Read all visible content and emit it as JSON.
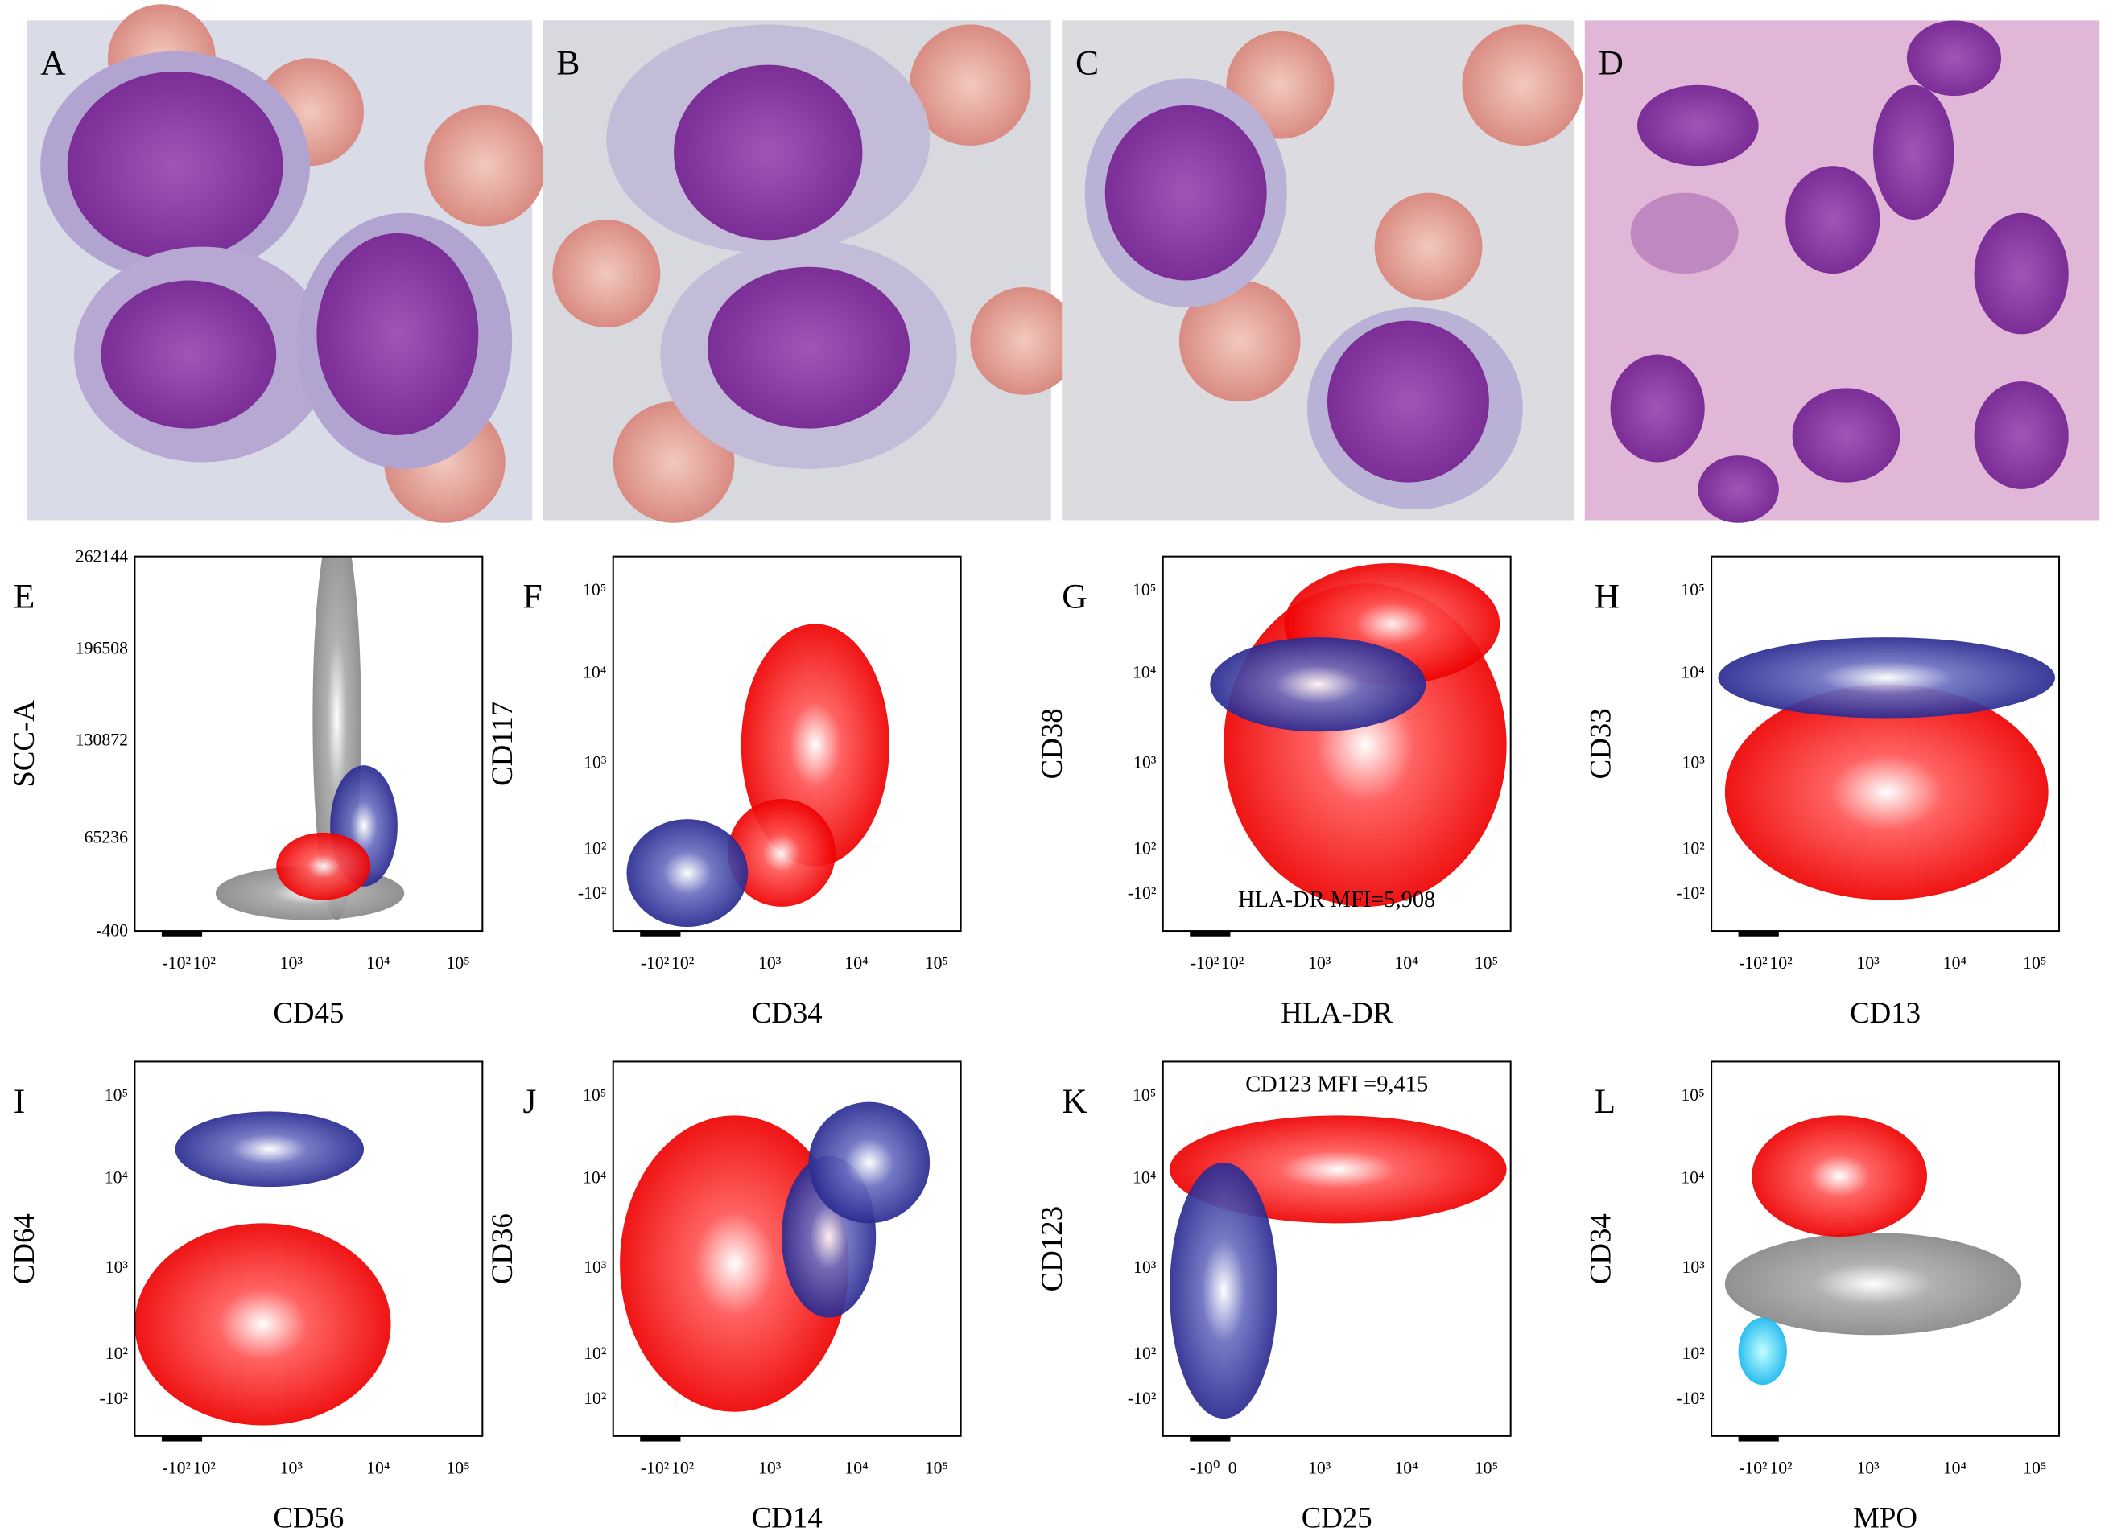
{
  "micrographs": [
    {
      "label": "A"
    },
    {
      "label": "B"
    },
    {
      "label": "C"
    },
    {
      "label": "D"
    }
  ],
  "plots": [
    {
      "label": "E",
      "x_label": "CD45",
      "y_label": "SCC-A",
      "x_ticks": [
        "-10²",
        "10²",
        "10³",
        "10⁴",
        "10⁵"
      ],
      "y_ticks": [
        "262144",
        "196508",
        "130872",
        "65236",
        "-400"
      ]
    },
    {
      "label": "F",
      "x_label": "CD34",
      "y_label": "CD117",
      "x_ticks": [
        "-10²",
        "10²",
        "10³",
        "10⁴",
        "10⁵"
      ],
      "y_ticks": [
        "10⁵",
        "10⁴",
        "10³",
        "10²",
        "-10²"
      ]
    },
    {
      "label": "G",
      "x_label": "HLA-DR",
      "y_label": "CD38",
      "x_ticks": [
        "-10²",
        "10²",
        "10³",
        "10⁴",
        "10⁵"
      ],
      "y_ticks": [
        "10⁵",
        "10⁴",
        "10³",
        "10²",
        "-10²"
      ],
      "annotation": "HLA-DR MFI=5,908"
    },
    {
      "label": "H",
      "x_label": "CD13",
      "y_label": "CD33",
      "x_ticks": [
        "-10²",
        "10²",
        "10³",
        "10⁴",
        "10⁵"
      ],
      "y_ticks": [
        "10⁵",
        "10⁴",
        "10³",
        "10²",
        "-10²"
      ]
    },
    {
      "label": "I",
      "x_label": "CD56",
      "y_label": "CD64",
      "x_ticks": [
        "-10²",
        "10²",
        "10³",
        "10⁴",
        "10⁵"
      ],
      "y_ticks": [
        "10⁵",
        "10⁴",
        "10³",
        "10²",
        "-10²"
      ]
    },
    {
      "label": "J",
      "x_label": "CD14",
      "y_label": "CD36",
      "x_ticks": [
        "-10²",
        "10²",
        "10³",
        "10⁴",
        "10⁵"
      ],
      "y_ticks": [
        "10⁵",
        "10⁴",
        "10³",
        "10²",
        "10²"
      ]
    },
    {
      "label": "K",
      "x_label": "CD25",
      "y_label": "CD123",
      "x_ticks": [
        "-10⁰",
        "0",
        "10³",
        "10⁴",
        "10⁵"
      ],
      "y_ticks": [
        "10⁵",
        "10⁴",
        "10³",
        "10²",
        "-10²"
      ],
      "annotation": "CD123 MFI =9,415"
    },
    {
      "label": "L",
      "x_label": "MPO",
      "y_label": "CD34",
      "x_ticks": [
        "-10²",
        "10²",
        "10³",
        "10⁴",
        "10⁵"
      ],
      "y_ticks": [
        "10⁵",
        "10⁴",
        "10³",
        "10²",
        "-10²"
      ]
    }
  ]
}
